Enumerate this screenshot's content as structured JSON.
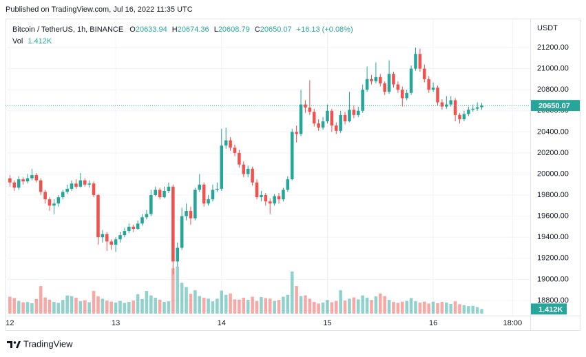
{
  "chart_data": {
    "type": "candlestick",
    "published": "Published on TradingView.com, Jul 16, 2022 11:35 UTC",
    "title": "Bitcoin / TetherUS, 1h, BINANCE",
    "ohlc_letters": [
      "O",
      "H",
      "L",
      "C"
    ],
    "change_label": "+16.13 (+0.08%)",
    "volume_name": "Vol",
    "volume_last_label": "1.412K",
    "currency": "USDT",
    "brand": "TradingView",
    "up_color": "#26a69a",
    "down_color": "#ef5350",
    "grid": true,
    "open": [
      19960,
      19920,
      19870,
      19950,
      19930,
      19960,
      19990,
      19940,
      19830,
      19760,
      19700,
      19720,
      19780,
      19830,
      19860,
      19910,
      19880,
      19940,
      19900,
      19910,
      19800,
      19400,
      19430,
      19360,
      19330,
      19380,
      19420,
      19460,
      19500,
      19480,
      19530,
      19590,
      19620,
      19800,
      19850,
      19780,
      19840,
      19880,
      19170,
      19300,
      19600,
      19650,
      19580,
      19850,
      19900,
      19720,
      19760,
      19850,
      19860,
      20270,
      20320,
      20250,
      20200,
      20090,
      20000,
      20050,
      19920,
      19780,
      19800,
      19740,
      19720,
      19790,
      19760,
      19850,
      19950,
      20400,
      20380,
      20660,
      20630,
      20590,
      20480,
      20440,
      20500,
      20600,
      20460,
      20410,
      20560,
      20500,
      20610,
      20560,
      20600,
      20800,
      20900,
      20880,
      20920,
      20860,
      20780,
      20950,
      20850,
      20800,
      20720,
      20770,
      21000,
      21140,
      21000,
      20900,
      20800,
      20820,
      20680,
      20640,
      20660,
      20700,
      20560,
      20520,
      20570,
      20610,
      20620,
      20633.94
    ],
    "high": [
      19990,
      19940,
      19980,
      19970,
      20000,
      20050,
      20010,
      19960,
      19850,
      19780,
      19760,
      19800,
      19850,
      19900,
      19940,
      19950,
      20010,
      19960,
      19940,
      19930,
      19810,
      19470,
      19450,
      19380,
      19400,
      19450,
      19490,
      19530,
      19520,
      19560,
      19620,
      19660,
      19850,
      19880,
      19870,
      19880,
      19920,
      19900,
      19350,
      19680,
      19720,
      19690,
      19870,
      20000,
      19920,
      19800,
      19900,
      19920,
      20430,
      20440,
      20350,
      20280,
      20230,
      20120,
      20080,
      20070,
      19950,
      19840,
      19820,
      19770,
      19810,
      19820,
      19870,
      19980,
      20430,
      20460,
      20800,
      20700,
      20890,
      20620,
      20520,
      20540,
      20660,
      20620,
      20490,
      20600,
      20590,
      20780,
      20650,
      20640,
      20850,
      21020,
      20940,
      21060,
      20950,
      20880,
      21080,
      20970,
      20880,
      20830,
      20800,
      21030,
      21200,
      21190,
      21040,
      20930,
      20870,
      20840,
      20710,
      20740,
      20740,
      20720,
      20580,
      20600,
      20640,
      20660,
      20680,
      20674.36
    ],
    "low": [
      19880,
      19840,
      19850,
      19900,
      19910,
      19940,
      19920,
      19800,
      19720,
      19650,
      19620,
      19690,
      19760,
      19810,
      19840,
      19860,
      19870,
      19880,
      19870,
      19780,
      19330,
      19350,
      19270,
      19280,
      19260,
      19350,
      19400,
      19440,
      19450,
      19470,
      19510,
      19570,
      19600,
      19790,
      19760,
      19770,
      19820,
      19050,
      19120,
      19280,
      19560,
      19520,
      19560,
      19830,
      19690,
      19700,
      19740,
      19830,
      19840,
      20240,
      20220,
      20170,
      20060,
      19970,
      19970,
      19890,
      19760,
      19740,
      19700,
      19620,
      19700,
      19720,
      19740,
      19830,
      19940,
      20300,
      20360,
      20580,
      20560,
      20450,
      20410,
      20420,
      20480,
      20400,
      20380,
      20390,
      20470,
      20490,
      20530,
      20540,
      20580,
      20780,
      20850,
      20860,
      20830,
      20750,
      20760,
      20820,
      20770,
      20640,
      20700,
      20750,
      20980,
      20970,
      20870,
      20770,
      20780,
      20650,
      20610,
      20620,
      20640,
      20500,
      20480,
      20500,
      20550,
      20590,
      20600,
      20608.79
    ],
    "close": [
      19920,
      19870,
      19950,
      19930,
      19960,
      19990,
      19940,
      19830,
      19760,
      19700,
      19720,
      19780,
      19830,
      19860,
      19910,
      19880,
      19940,
      19900,
      19910,
      19800,
      19400,
      19430,
      19360,
      19330,
      19380,
      19420,
      19460,
      19500,
      19480,
      19530,
      19590,
      19620,
      19800,
      19850,
      19780,
      19840,
      19880,
      19170,
      19300,
      19600,
      19650,
      19580,
      19850,
      19900,
      19720,
      19760,
      19850,
      19860,
      20270,
      20320,
      20250,
      20200,
      20090,
      20000,
      20050,
      19920,
      19780,
      19800,
      19740,
      19720,
      19790,
      19760,
      19850,
      19950,
      20400,
      20380,
      20660,
      20630,
      20590,
      20480,
      20440,
      20500,
      20600,
      20460,
      20410,
      20560,
      20500,
      20610,
      20560,
      20600,
      20800,
      20900,
      20880,
      20920,
      20860,
      20780,
      20950,
      20850,
      20800,
      20720,
      20770,
      21000,
      21140,
      21000,
      20900,
      20800,
      20820,
      20680,
      20640,
      20660,
      20700,
      20560,
      20520,
      20570,
      20610,
      20620,
      20633.94,
      20650.07
    ],
    "volume": [
      5200,
      4800,
      3900,
      3500,
      3600,
      3200,
      4500,
      8500,
      5000,
      4300,
      3600,
      3300,
      4200,
      5600,
      5400,
      4900,
      3800,
      4100,
      3500,
      7000,
      5300,
      4600,
      4000,
      3700,
      3400,
      3900,
      3300,
      3600,
      4000,
      6000,
      4500,
      7000,
      5600,
      4900,
      4300,
      3600,
      3800,
      14000,
      14500,
      9500,
      8200,
      6100,
      7200,
      5400,
      4900,
      4600,
      3800,
      4600,
      7100,
      5800,
      6200,
      4400,
      4300,
      4900,
      4200,
      5200,
      3900,
      5100,
      4800,
      4600,
      3900,
      4200,
      5200,
      5800,
      13000,
      8500,
      5400,
      5600,
      4600,
      3600,
      3100,
      3400,
      4200,
      3500,
      3900,
      7200,
      4000,
      4600,
      5000,
      4400,
      5600,
      4900,
      4200,
      5300,
      6200,
      5400,
      4200,
      3600,
      3300,
      3700,
      3900,
      4800,
      3800,
      3400,
      3700,
      3100,
      3700,
      3200,
      3600,
      3400,
      3000,
      3800,
      2900,
      2600,
      2300,
      2400,
      2000,
      1412
    ],
    "volume_lim": [
      0,
      20000
    ],
    "ylim": [
      18656,
      21475
    ],
    "yticks": [
      {
        "value": 18800,
        "label": "18800.00"
      },
      {
        "value": 19000,
        "label": "19000.00"
      },
      {
        "value": 19200,
        "label": "19200.00"
      },
      {
        "value": 19400,
        "label": "19400.00"
      },
      {
        "value": 19600,
        "label": "19600.00"
      },
      {
        "value": 19800,
        "label": "19800.00"
      },
      {
        "value": 20000,
        "label": "20000.00"
      },
      {
        "value": 20200,
        "label": "20200.00"
      },
      {
        "value": 20400,
        "label": "20400.00"
      },
      {
        "value": 20600,
        "label": "20600.00"
      },
      {
        "value": 20800,
        "label": "20800.00"
      },
      {
        "value": 21000,
        "label": "21000.00"
      },
      {
        "value": 21200,
        "label": "21200.00"
      }
    ],
    "xlim": [
      -1,
      118
    ],
    "xticks": [
      {
        "value": 0,
        "label": "12"
      },
      {
        "value": 24,
        "label": "13"
      },
      {
        "value": 48,
        "label": "14"
      },
      {
        "value": 72,
        "label": "15"
      },
      {
        "value": 96,
        "label": "16"
      },
      {
        "value": 114,
        "label": "18:00"
      }
    ]
  }
}
